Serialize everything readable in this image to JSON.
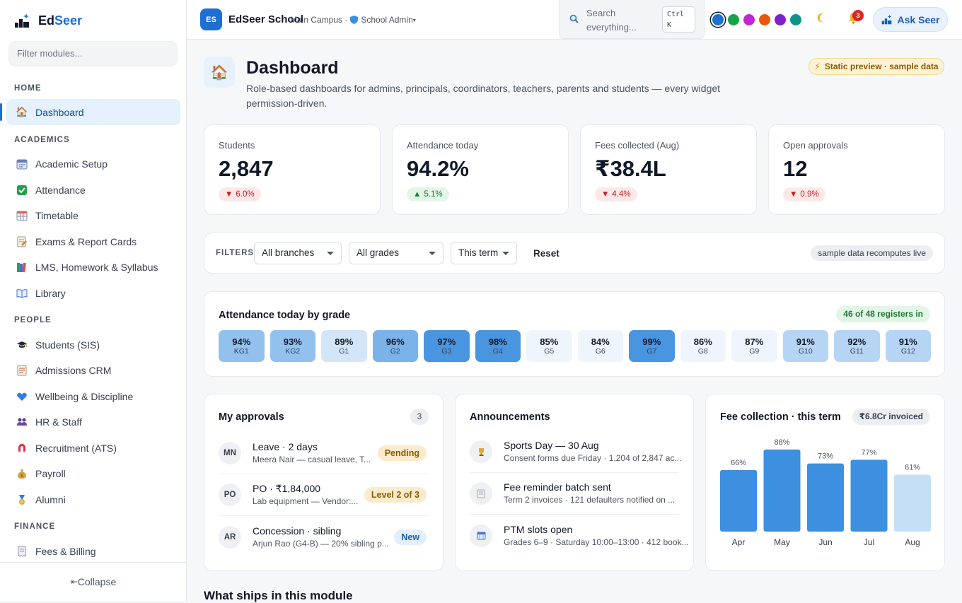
{
  "app": {
    "name_part1": "Ed",
    "name_part2": "Seer"
  },
  "sidebar": {
    "filter_placeholder": "Filter modules...",
    "sections": [
      {
        "label": "HOME",
        "items": [
          {
            "label": "Dashboard",
            "icon": "house-icon",
            "active": true
          }
        ]
      },
      {
        "label": "ACADEMICS",
        "items": [
          {
            "label": "Academic Setup",
            "icon": "calendar-icon"
          },
          {
            "label": "Attendance",
            "icon": "check-box-icon"
          },
          {
            "label": "Timetable",
            "icon": "calendar-grid-icon"
          },
          {
            "label": "Exams & Report Cards",
            "icon": "report-icon"
          },
          {
            "label": "LMS, Homework & Syllabus",
            "icon": "books-icon"
          },
          {
            "label": "Library",
            "icon": "open-book-icon"
          }
        ]
      },
      {
        "label": "PEOPLE",
        "items": [
          {
            "label": "Students (SIS)",
            "icon": "graduation-cap-icon"
          },
          {
            "label": "Admissions CRM",
            "icon": "form-icon"
          },
          {
            "label": "Wellbeing & Discipline",
            "icon": "heart-icon"
          },
          {
            "label": "HR & Staff",
            "icon": "people-icon"
          },
          {
            "label": "Recruitment (ATS)",
            "icon": "magnet-icon"
          },
          {
            "label": "Payroll",
            "icon": "money-bag-icon"
          },
          {
            "label": "Alumni",
            "icon": "medal-icon"
          }
        ]
      },
      {
        "label": "FINANCE",
        "items": [
          {
            "label": "Fees & Billing",
            "icon": "receipt-icon"
          }
        ]
      }
    ],
    "collapse_label": "Collapse"
  },
  "topbar": {
    "school_initials": "ES",
    "school_name": "EdSeer School",
    "campus": "Main Campus ·",
    "role": "School Admin",
    "role_caret": "▾",
    "search_placeholder": "Search everything...",
    "shortcut": "Ctrl K",
    "theme_colors": [
      "#1d6fd1",
      "#16a34a",
      "#c026d3",
      "#ea580c",
      "#7e22ce",
      "#0d9488"
    ],
    "notification_count": "3",
    "ask_label": "Ask Seer"
  },
  "page": {
    "title": "Dashboard",
    "subtitle": "Role-based dashboards for admins, principals, coordinators, teachers, parents and students — every widget permission-driven.",
    "preview_badge": "Static preview · sample data"
  },
  "kpis": [
    {
      "label": "Students",
      "value": "2,847",
      "delta": "6.0%",
      "direction": "down"
    },
    {
      "label": "Attendance today",
      "value": "94.2%",
      "delta": "5.1%",
      "direction": "up"
    },
    {
      "label": "Fees collected (Aug)",
      "value": "₹38.4L",
      "delta": "4.4%",
      "direction": "down"
    },
    {
      "label": "Open approvals",
      "value": "12",
      "delta": "0.9%",
      "direction": "down"
    }
  ],
  "filters": {
    "label": "FILTERS",
    "branch": "All branches",
    "grade": "All grades",
    "term": "This term",
    "reset": "Reset",
    "live_badge": "sample data recomputes live"
  },
  "attendance": {
    "title": "Attendance today by grade",
    "registers": "46 of 48 registers in",
    "grades": [
      {
        "pct": "94%",
        "label": "KG1"
      },
      {
        "pct": "93%",
        "label": "KG2"
      },
      {
        "pct": "89%",
        "label": "G1"
      },
      {
        "pct": "96%",
        "label": "G2"
      },
      {
        "pct": "97%",
        "label": "G3"
      },
      {
        "pct": "98%",
        "label": "G4"
      },
      {
        "pct": "85%",
        "label": "G5"
      },
      {
        "pct": "84%",
        "label": "G6"
      },
      {
        "pct": "99%",
        "label": "G7"
      },
      {
        "pct": "86%",
        "label": "G8"
      },
      {
        "pct": "87%",
        "label": "G9"
      },
      {
        "pct": "91%",
        "label": "G10"
      },
      {
        "pct": "92%",
        "label": "G11"
      },
      {
        "pct": "91%",
        "label": "G12"
      }
    ]
  },
  "approvals": {
    "title": "My approvals",
    "count": "3",
    "items": [
      {
        "initials": "MN",
        "title": "Leave · 2 days",
        "desc": "Meera Nair — casual leave, T...",
        "status": "Pending"
      },
      {
        "initials": "PO",
        "title": "PO · ₹1,84,000",
        "desc": "Lab equipment — Vendor:...",
        "status": "Level 2 of 3"
      },
      {
        "initials": "AR",
        "title": "Concession · sibling",
        "desc": "Arjun Rao (G4-B) — 20% sibling p...",
        "status": "New"
      }
    ]
  },
  "announcements": {
    "title": "Announcements",
    "items": [
      {
        "icon": "trophy-icon",
        "title": "Sports Day — 30 Aug",
        "desc": "Consent forms due Friday · 1,204 of 2,847 ac..."
      },
      {
        "icon": "document-icon",
        "title": "Fee reminder batch sent",
        "desc": "Term 2 invoices · 121 defaulters notified on ..."
      },
      {
        "icon": "calendar-icon",
        "title": "PTM slots open",
        "desc": "Grades 6–9 · Saturday 10:00–13:00 · 412 book..."
      }
    ]
  },
  "fee_collection": {
    "title": "Fee collection · this term",
    "invoiced": "₹6.8Cr invoiced"
  },
  "chart_data": {
    "type": "bar",
    "title": "Fee collection · this term",
    "categories": [
      "Apr",
      "May",
      "Jun",
      "Jul",
      "Aug"
    ],
    "values": [
      66,
      88,
      73,
      77,
      61
    ],
    "data_labels": [
      "66%",
      "88%",
      "73%",
      "77%",
      "61%"
    ],
    "ylim": [
      0,
      100
    ],
    "colors": [
      "#3d8fe0",
      "#3d8fe0",
      "#3d8fe0",
      "#3d8fe0",
      "#c5dff7"
    ],
    "grid": false
  },
  "bottom": {
    "title": "What ships in this module"
  }
}
